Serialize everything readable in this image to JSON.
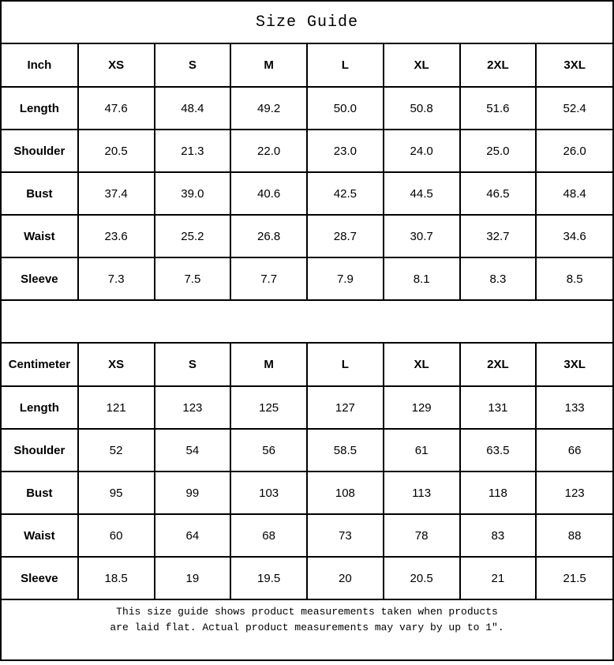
{
  "title": "Size Guide",
  "colors": {
    "border": "#000000",
    "background": "#ffffff",
    "text": "#000000"
  },
  "chart_data": [
    {
      "type": "table",
      "unit": "Inch",
      "sizes": [
        "XS",
        "S",
        "M",
        "L",
        "XL",
        "2XL",
        "3XL"
      ],
      "rows": [
        {
          "label": "Length",
          "values": [
            "47.6",
            "48.4",
            "49.2",
            "50.0",
            "50.8",
            "51.6",
            "52.4"
          ]
        },
        {
          "label": "Shoulder",
          "values": [
            "20.5",
            "21.3",
            "22.0",
            "23.0",
            "24.0",
            "25.0",
            "26.0"
          ]
        },
        {
          "label": "Bust",
          "values": [
            "37.4",
            "39.0",
            "40.6",
            "42.5",
            "44.5",
            "46.5",
            "48.4"
          ]
        },
        {
          "label": "Waist",
          "values": [
            "23.6",
            "25.2",
            "26.8",
            "28.7",
            "30.7",
            "32.7",
            "34.6"
          ]
        },
        {
          "label": "Sleeve",
          "values": [
            "7.3",
            "7.5",
            "7.7",
            "7.9",
            "8.1",
            "8.3",
            "8.5"
          ]
        }
      ]
    },
    {
      "type": "table",
      "unit": "Centimeter",
      "sizes": [
        "XS",
        "S",
        "M",
        "L",
        "XL",
        "2XL",
        "3XL"
      ],
      "rows": [
        {
          "label": "Length",
          "values": [
            "121",
            "123",
            "125",
            "127",
            "129",
            "131",
            "133"
          ]
        },
        {
          "label": "Shoulder",
          "values": [
            "52",
            "54",
            "56",
            "58.5",
            "61",
            "63.5",
            "66"
          ]
        },
        {
          "label": "Bust",
          "values": [
            "95",
            "99",
            "103",
            "108",
            "113",
            "118",
            "123"
          ]
        },
        {
          "label": "Waist",
          "values": [
            "60",
            "64",
            "68",
            "73",
            "78",
            "83",
            "88"
          ]
        },
        {
          "label": "Sleeve",
          "values": [
            "18.5",
            "19",
            "19.5",
            "20",
            "20.5",
            "21",
            "21.5"
          ]
        }
      ]
    }
  ],
  "footer": {
    "line1": "This size guide shows product measurements taken when products",
    "line2": "are laid flat. Actual product measurements may vary by up to 1″."
  }
}
